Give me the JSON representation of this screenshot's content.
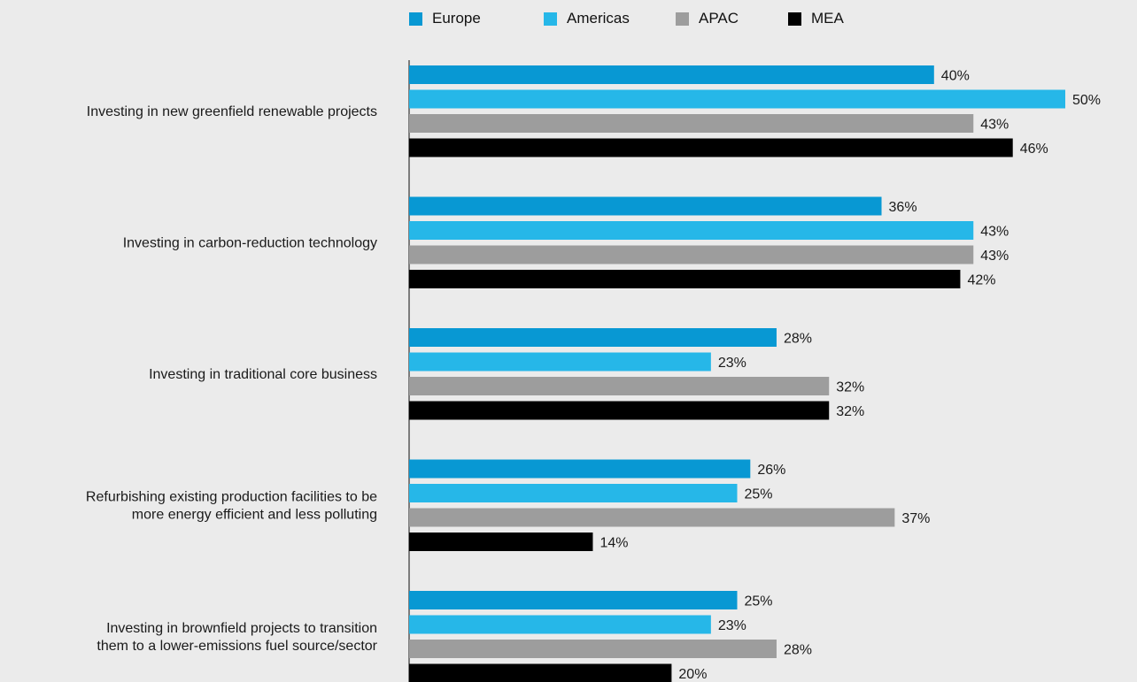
{
  "chart_data": {
    "type": "bar",
    "orientation": "horizontal",
    "title": "",
    "xlabel": "",
    "ylabel": "",
    "xlim": [
      0,
      50
    ],
    "grid": false,
    "legend_position": "top",
    "categories": [
      [
        "Investing in new greenfield renewable projects"
      ],
      [
        "Investing in carbon-reduction technology"
      ],
      [
        "Investing in traditional core business"
      ],
      [
        "Refurbishing existing production facilities to be",
        "more energy efficient and less polluting"
      ],
      [
        "Investing in brownfield projects to transition",
        "them to a lower-emissions fuel source/sector"
      ]
    ],
    "series": [
      {
        "name": "Europe",
        "color": "#0898d3",
        "values": [
          40,
          36,
          28,
          26,
          25
        ]
      },
      {
        "name": "Americas",
        "color": "#26b7e8",
        "values": [
          50,
          43,
          23,
          25,
          23
        ]
      },
      {
        "name": "APAC",
        "color": "#9d9d9d",
        "values": [
          43,
          43,
          32,
          37,
          28
        ]
      },
      {
        "name": "MEA",
        "color": "#000000",
        "values": [
          46,
          42,
          32,
          14,
          20
        ]
      }
    ],
    "value_suffix": "%"
  }
}
